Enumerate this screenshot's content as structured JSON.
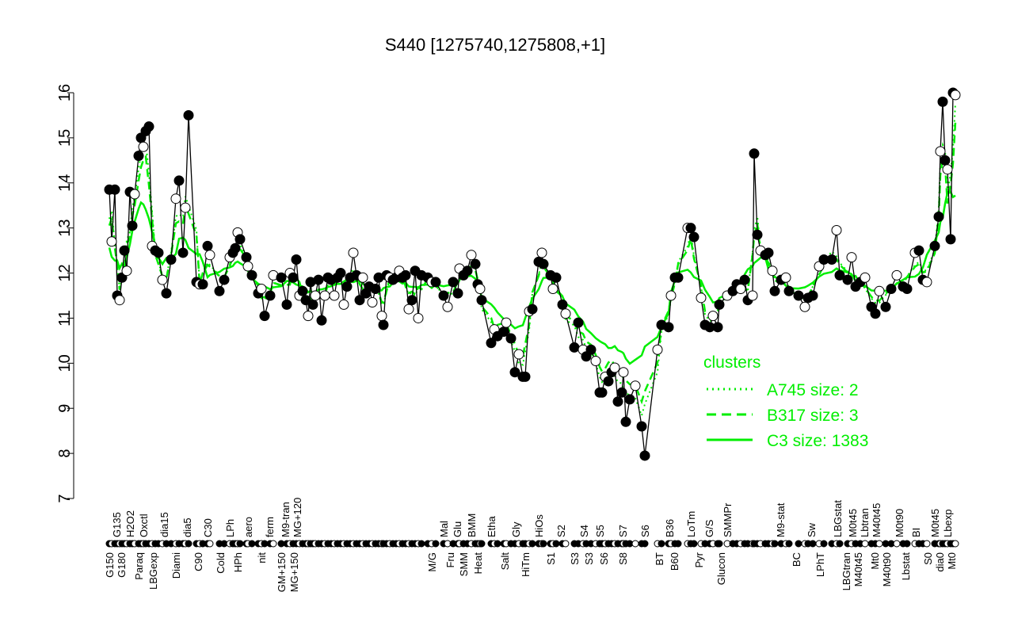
{
  "chart_data": {
    "type": "line",
    "title": "S440 [1275740,1275808,+1]",
    "xlabel": "",
    "ylabel": "",
    "ylim": [
      7,
      16
    ],
    "yticks": [
      7,
      8,
      9,
      10,
      11,
      12,
      13,
      14,
      15,
      16
    ],
    "grid": false,
    "legend": {
      "placement": "right",
      "title": "clusters",
      "color": "#00ee00",
      "entries": [
        {
          "label": "A745 size: 2",
          "style": "dotted"
        },
        {
          "label": "B317 size: 3",
          "style": "dashed"
        },
        {
          "label": "C3 size: 1383",
          "style": "solid"
        }
      ]
    },
    "series_color": "#000000",
    "cluster_color": "#00ee00",
    "values": [
      13.85,
      12.7,
      13.85,
      11.5,
      11.4,
      11.9,
      12.5,
      12.05,
      13.8,
      13.05,
      13.75,
      14.6,
      15.0,
      14.8,
      15.15,
      15.25,
      12.6,
      12.5,
      12.45,
      11.85,
      11.55,
      12.3,
      13.65,
      14.05,
      12.45,
      13.45,
      15.5,
      11.8,
      11.75,
      11.75,
      12.6,
      12.4,
      11.6,
      11.85,
      12.35,
      12.45,
      12.55,
      12.9,
      12.75,
      12.35,
      12.15,
      11.95,
      11.55,
      11.65,
      11.05,
      11.5,
      11.95,
      11.9,
      11.3,
      12.0,
      11.9,
      12.3,
      11.5,
      11.6,
      11.4,
      11.05,
      11.8,
      11.3,
      11.5,
      11.85,
      10.95,
      11.5,
      11.9,
      11.85,
      11.5,
      11.9,
      12.0,
      11.3,
      11.7,
      11.9,
      12.45,
      11.95,
      11.4,
      11.9,
      11.55,
      11.7,
      11.35,
      11.65,
      11.9,
      11.05,
      10.85,
      11.95,
      11.9,
      11.85,
      11.9,
      12.05,
      11.9,
      11.95,
      11.2,
      11.4,
      12.05,
      11.0,
      11.95,
      11.9,
      11.8,
      11.8,
      11.5,
      11.25,
      11.8,
      11.55,
      12.1,
      11.95,
      12.05,
      12.4,
      12.2,
      11.75,
      11.65,
      11.4,
      10.45,
      10.75,
      10.6,
      10.7,
      10.9,
      10.55,
      9.8,
      10.2,
      9.7,
      9.7,
      11.15,
      11.2,
      12.25,
      12.45,
      12.2,
      11.95,
      11.65,
      11.9,
      11.3,
      11.1,
      10.35,
      10.9,
      10.3,
      10.15,
      10.3,
      10.05,
      9.35,
      9.35,
      9.7,
      9.6,
      9.8,
      9.9,
      9.15,
      9.35,
      9.8,
      8.7,
      9.2,
      9.5,
      8.6,
      7.95,
      10.3,
      10.85,
      10.8,
      11.5,
      11.9,
      11.9,
      13.0,
      13.0,
      12.8,
      11.45,
      10.85,
      10.8,
      11.05,
      10.8,
      11.3,
      11.5,
      11.6,
      11.75,
      11.65,
      11.85,
      11.4,
      11.5,
      14.65,
      12.85,
      12.5,
      12.4,
      12.45,
      12.05,
      11.6,
      11.85,
      11.9,
      11.6,
      11.5,
      11.25,
      11.45,
      11.5,
      12.15,
      12.3,
      12.3,
      12.95,
      11.95,
      11.85,
      12.35,
      11.7,
      11.8,
      11.9,
      11.25,
      11.1,
      11.6,
      11.25,
      11.65,
      11.95,
      11.7,
      11.65,
      12.45,
      12.5,
      11.85,
      11.8,
      12.6,
      13.25,
      14.7,
      15.8,
      14.5,
      14.3,
      12.75,
      16.0,
      15.95
    ],
    "tick_labels_top": [
      "G135",
      "H2O2",
      "Oxctl",
      "dia15",
      "dia5",
      "C30",
      "LPh",
      "aero",
      "ferm",
      "M9-tran",
      "MG+120",
      "Mal",
      "Glu",
      "BMM",
      "Etha",
      "Gly",
      "HiOs",
      "S2",
      "S4",
      "S5",
      "S7",
      "S6",
      "B36",
      "LoTm",
      "G/S",
      "SMMPr",
      "M9-stat",
      "Sw",
      "LBGstat",
      "M0t45",
      "Lbtran",
      "M40t45",
      "M0t90",
      "BI",
      "M0t45",
      "Lbexp"
    ],
    "tick_labels_bottom": [
      "G150",
      "G180",
      "Paraq",
      "LBGexp",
      "Diami",
      "C90",
      "Cold",
      "HPh",
      "nit",
      "GM+150",
      "MG+150",
      "M/G",
      "Fru",
      "SMM",
      "Heat",
      "Salt",
      "HiTm",
      "S1",
      "S3",
      "S3",
      "S6",
      "S8",
      "BT",
      "B60",
      "Pyr",
      "Glucon",
      "BC",
      "LPhT",
      "LBGtran",
      "M40t45",
      "Mt0",
      "M40t90",
      "Lbstat",
      "S0",
      "dia0",
      "Mt0"
    ]
  }
}
